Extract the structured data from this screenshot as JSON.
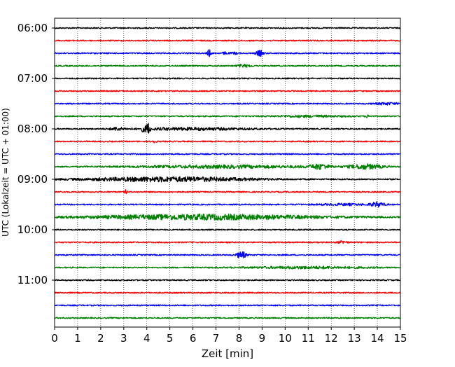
{
  "chart_data": {
    "type": "line",
    "title": "",
    "xlabel": "Zeit  [min]",
    "ylabel": "UTC (Lokalzeit = UTC + 01:00)",
    "xlim": [
      0,
      15
    ],
    "x_ticks": [
      0,
      1,
      2,
      3,
      4,
      5,
      6,
      7,
      8,
      9,
      10,
      11,
      12,
      13,
      14,
      15
    ],
    "x_tick_labels": [
      "0",
      "1",
      "2",
      "3",
      "4",
      "5",
      "6",
      "7",
      "8",
      "9",
      "10",
      "11",
      "12",
      "13",
      "14",
      "15"
    ],
    "y_tick_labels": [
      "06:00",
      "07:00",
      "08:00",
      "09:00",
      "10:00",
      "11:00"
    ],
    "grid": "vertical dotted at each minute",
    "trace_colors": [
      "#000000",
      "#ff0000",
      "#0000ff",
      "#008000"
    ],
    "traces": [
      {
        "start": "06:00",
        "color": "#000000",
        "events": []
      },
      {
        "start": "06:15",
        "color": "#ff0000",
        "events": []
      },
      {
        "start": "06:30",
        "color": "#0000ff",
        "events": [
          {
            "t": 6.7,
            "amp": 0.55,
            "w": 0.08
          },
          {
            "t": 7.4,
            "amp": 0.2,
            "w": 0.1
          },
          {
            "t": 7.8,
            "amp": 0.15,
            "w": 0.15
          },
          {
            "t": 8.9,
            "amp": 0.45,
            "w": 0.15
          }
        ]
      },
      {
        "start": "06:45",
        "color": "#008000",
        "events": [
          {
            "t": 8.2,
            "amp": 0.2,
            "w": 0.3
          }
        ]
      },
      {
        "start": "07:00",
        "color": "#000000",
        "events": []
      },
      {
        "start": "07:15",
        "color": "#ff0000",
        "events": []
      },
      {
        "start": "07:30",
        "color": "#0000ff",
        "events": [
          {
            "t": 14.4,
            "amp": 0.15,
            "w": 0.5
          }
        ]
      },
      {
        "start": "07:45",
        "color": "#008000",
        "events": [
          {
            "t": 13.6,
            "amp": 0.2,
            "w": 0.1
          },
          {
            "t": 11.0,
            "amp": 0.12,
            "w": 1.5
          }
        ]
      },
      {
        "start": "08:00",
        "color": "#000000",
        "events": [
          {
            "t": 2.7,
            "amp": 0.2,
            "w": 0.3
          },
          {
            "t": 4.05,
            "amp": 1.0,
            "w": 0.08
          },
          {
            "t": 3.85,
            "amp": 0.35,
            "w": 0.1
          },
          {
            "t": 6.0,
            "amp": 0.18,
            "w": 2.5
          }
        ]
      },
      {
        "start": "08:15",
        "color": "#ff0000",
        "events": [
          {
            "t": 4.3,
            "amp": 0.2,
            "w": 0.1
          }
        ]
      },
      {
        "start": "08:30",
        "color": "#0000ff",
        "events": []
      },
      {
        "start": "08:45",
        "color": "#008000",
        "events": [
          {
            "t": 11.5,
            "amp": 0.35,
            "w": 0.4
          },
          {
            "t": 13.5,
            "amp": 0.35,
            "w": 0.7
          },
          {
            "t": 7.5,
            "amp": 0.2,
            "w": 4.0
          }
        ]
      },
      {
        "start": "09:00",
        "color": "#000000",
        "events": [
          {
            "t": 5.0,
            "amp": 0.35,
            "w": 3.5
          }
        ]
      },
      {
        "start": "09:15",
        "color": "#ff0000",
        "events": [
          {
            "t": 3.1,
            "amp": 0.3,
            "w": 0.05
          }
        ]
      },
      {
        "start": "09:30",
        "color": "#0000ff",
        "events": [
          {
            "t": 14.0,
            "amp": 0.35,
            "w": 0.3
          },
          {
            "t": 12.5,
            "amp": 0.12,
            "w": 1.0
          }
        ]
      },
      {
        "start": "09:45",
        "color": "#008000",
        "events": [
          {
            "t": 6.5,
            "amp": 0.4,
            "w": 5.0
          }
        ]
      },
      {
        "start": "10:00",
        "color": "#000000",
        "events": []
      },
      {
        "start": "10:15",
        "color": "#ff0000",
        "events": [
          {
            "t": 12.5,
            "amp": 0.2,
            "w": 0.2
          }
        ]
      },
      {
        "start": "10:30",
        "color": "#0000ff",
        "events": [
          {
            "t": 8.1,
            "amp": 0.55,
            "w": 0.2
          }
        ]
      },
      {
        "start": "10:45",
        "color": "#008000",
        "events": [
          {
            "t": 11.0,
            "amp": 0.15,
            "w": 2.5
          }
        ]
      },
      {
        "start": "11:00",
        "color": "#000000",
        "events": []
      },
      {
        "start": "11:15",
        "color": "#ff0000",
        "events": []
      },
      {
        "start": "11:30",
        "color": "#0000ff",
        "events": []
      },
      {
        "start": "11:45",
        "color": "#008000",
        "events": []
      }
    ]
  }
}
